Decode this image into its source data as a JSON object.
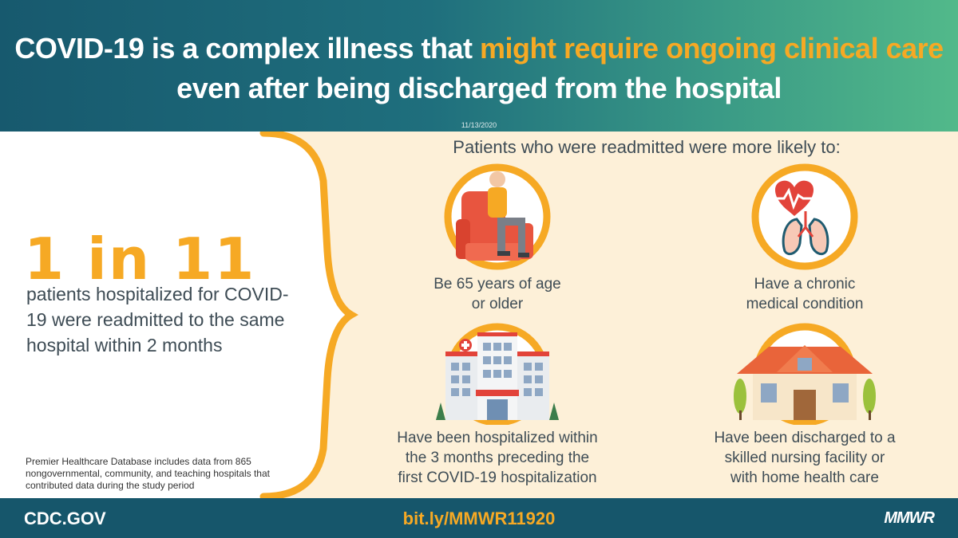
{
  "header": {
    "title_part1": "COVID-19 is a complex illness that ",
    "title_highlight": "might require ongoing clinical care",
    "title_part2": "even after being discharged from the hospital",
    "date": "11/13/2020"
  },
  "stat": {
    "value": "1 in 11",
    "description": "patients hospitalized for COVID-19 were readmitted to the same hospital within 2 months"
  },
  "footnote": "Premier Healthcare Database includes data from 865 nongovernmental, community, and teaching hospitals that contributed data during the study period",
  "right_panel": {
    "subtitle": "Patients who were readmitted were more likely to:",
    "items": [
      {
        "label_line1": "Be 65 years of age",
        "label_line2": "or older",
        "icon": "elderly-person-chair-icon"
      },
      {
        "label_line1": "Have a chronic",
        "label_line2": "medical condition",
        "icon": "heart-lungs-icon"
      },
      {
        "label_line1": "Have been hospitalized within",
        "label_line2": "the 3 months preceding the",
        "label_line3": "first COVID-19 hospitalization",
        "icon": "hospital-icon"
      },
      {
        "label_line1": "Have been discharged to a",
        "label_line2": "skilled nursing facility or",
        "label_line3": "with home health care",
        "icon": "house-icon"
      }
    ]
  },
  "footer": {
    "site": "CDC.GOV",
    "link": "bit.ly/MMWR11920",
    "brand": "MMWR"
  },
  "colors": {
    "accent": "#f6a924",
    "header_start": "#17596e",
    "header_end": "#52b98a",
    "footer": "#16566b",
    "panel_bg": "#fdf0d8",
    "text": "#3e4c55"
  }
}
